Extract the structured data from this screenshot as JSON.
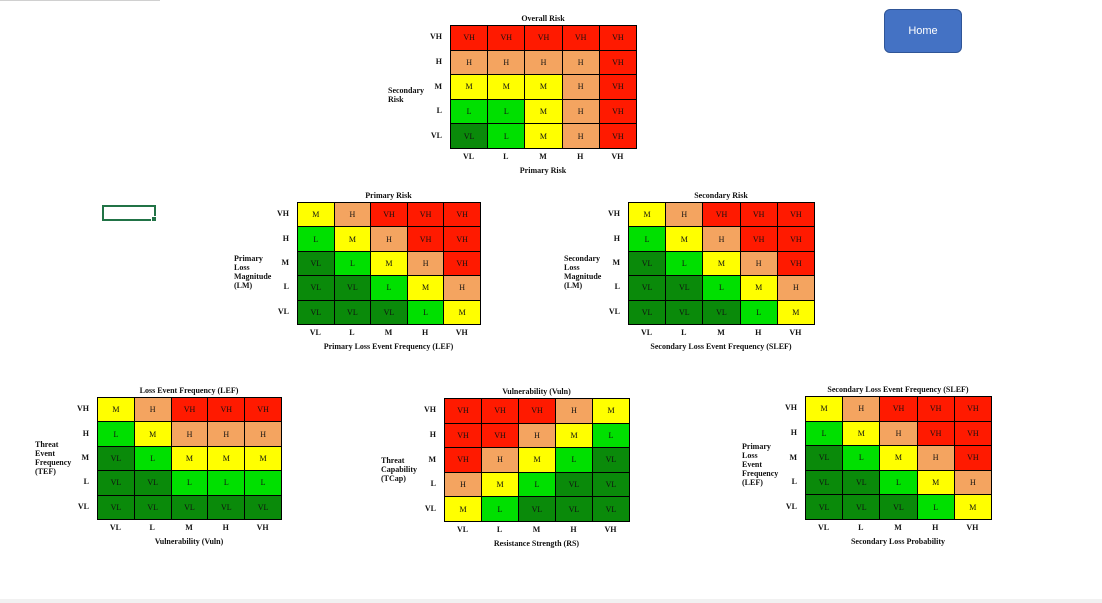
{
  "home_button": {
    "label": "Home"
  },
  "colors": {
    "VL": "#0a8a0a",
    "L": "#00e000",
    "M": "#ffff00",
    "H": "#f4a460",
    "VH": "#ff1a00"
  },
  "levels": [
    "VL",
    "L",
    "M",
    "H",
    "VH"
  ],
  "matrices": [
    {
      "id": "overall",
      "title": "Overall Risk",
      "y_axis_label": "Secondary\nRisk",
      "x_axis_label": "Primary Risk",
      "rows": [
        [
          "VH",
          "VH",
          "VH",
          "VH",
          "VH"
        ],
        [
          "H",
          "H",
          "H",
          "H",
          "VH"
        ],
        [
          "M",
          "M",
          "M",
          "H",
          "VH"
        ],
        [
          "L",
          "L",
          "M",
          "H",
          "VH"
        ],
        [
          "VL",
          "L",
          "M",
          "H",
          "VH"
        ]
      ]
    },
    {
      "id": "primary",
      "title": "Primary Risk",
      "y_axis_label": "Primary\nLoss\nMagnitude\n(LM)",
      "x_axis_label": "Primary Loss Event Frequency (LEF)",
      "rows": [
        [
          "M",
          "H",
          "VH",
          "VH",
          "VH"
        ],
        [
          "L",
          "M",
          "H",
          "VH",
          "VH"
        ],
        [
          "VL",
          "L",
          "M",
          "H",
          "VH"
        ],
        [
          "VL",
          "VL",
          "L",
          "M",
          "H"
        ],
        [
          "VL",
          "VL",
          "VL",
          "L",
          "M"
        ]
      ]
    },
    {
      "id": "secondary",
      "title": "Secondary Risk",
      "y_axis_label": "Secondary\nLoss\nMagnitude\n(LM)",
      "x_axis_label": "Secondary Loss Event Frequency (SLEF)",
      "rows": [
        [
          "M",
          "H",
          "VH",
          "VH",
          "VH"
        ],
        [
          "L",
          "M",
          "H",
          "VH",
          "VH"
        ],
        [
          "VL",
          "L",
          "M",
          "H",
          "VH"
        ],
        [
          "VL",
          "VL",
          "L",
          "M",
          "H"
        ],
        [
          "VL",
          "VL",
          "VL",
          "L",
          "M"
        ]
      ]
    },
    {
      "id": "lef",
      "title": "Loss Event Frequency (LEF)",
      "y_axis_label": "Threat\nEvent\nFrequency\n(TEF)",
      "x_axis_label": "Vulnerability (Vuln)",
      "rows": [
        [
          "M",
          "H",
          "VH",
          "VH",
          "VH"
        ],
        [
          "L",
          "M",
          "H",
          "H",
          "H"
        ],
        [
          "VL",
          "L",
          "M",
          "M",
          "M"
        ],
        [
          "VL",
          "VL",
          "L",
          "L",
          "L"
        ],
        [
          "VL",
          "VL",
          "VL",
          "VL",
          "VL"
        ]
      ]
    },
    {
      "id": "vuln",
      "title": "Vulnerability (Vuln)",
      "y_axis_label": "Threat\nCapability\n(TCap)",
      "x_axis_label": "Resistance Strength (RS)",
      "rows": [
        [
          "VH",
          "VH",
          "VH",
          "H",
          "M"
        ],
        [
          "VH",
          "VH",
          "H",
          "M",
          "L"
        ],
        [
          "VH",
          "H",
          "M",
          "L",
          "VL"
        ],
        [
          "H",
          "M",
          "L",
          "VL",
          "VL"
        ],
        [
          "M",
          "L",
          "VL",
          "VL",
          "VL"
        ]
      ]
    },
    {
      "id": "slef",
      "title": "Secondary Loss Event Frequency (SLEF)",
      "y_axis_label": "Primary\nLoss\nEvent\nFrequency\n(LEF)",
      "x_axis_label": "Secondary Loss Probability",
      "rows": [
        [
          "M",
          "H",
          "VH",
          "VH",
          "VH"
        ],
        [
          "L",
          "M",
          "H",
          "VH",
          "VH"
        ],
        [
          "VL",
          "L",
          "M",
          "H",
          "VH"
        ],
        [
          "VL",
          "VL",
          "L",
          "M",
          "H"
        ],
        [
          "VL",
          "VL",
          "VL",
          "L",
          "M"
        ]
      ]
    }
  ]
}
